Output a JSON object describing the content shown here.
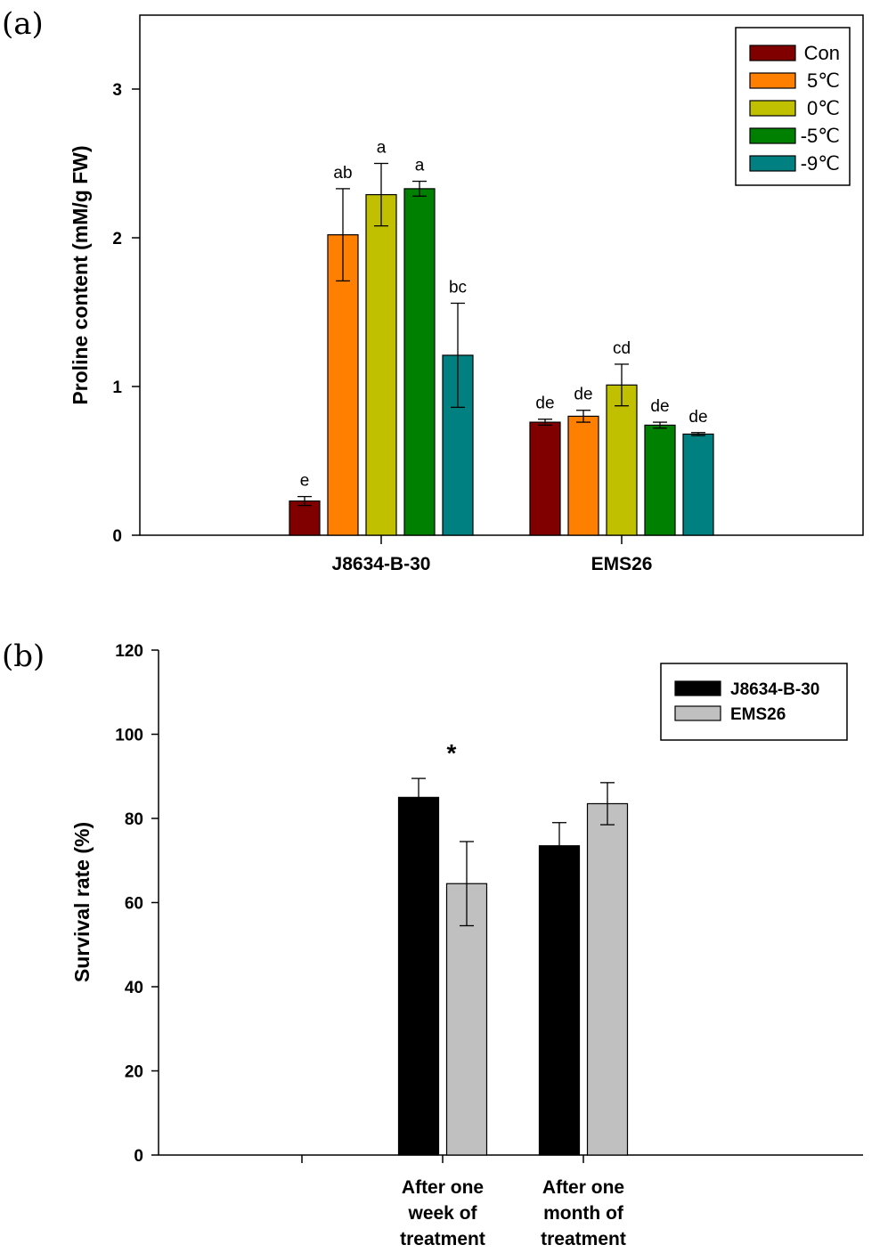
{
  "chart_data": [
    {
      "panel_label": "(a)",
      "type": "bar",
      "ylabel": "Proline content (mM/g FW)",
      "xlabel": "",
      "ylim": [
        0,
        3.5
      ],
      "yticks": [
        0,
        1,
        2,
        3
      ],
      "categories": [
        "J8634-B-30",
        "EMS26"
      ],
      "legend_position": "top-right",
      "series": [
        {
          "name": "Con",
          "color": "#800000",
          "values": [
            0.23,
            0.76
          ],
          "errors": [
            0.03,
            0.02
          ],
          "sig_labels": [
            "e",
            "de"
          ]
        },
        {
          "name": "5℃",
          "color": "#FF8000",
          "values": [
            2.02,
            0.8
          ],
          "errors": [
            0.31,
            0.04
          ],
          "sig_labels": [
            "ab",
            "de"
          ]
        },
        {
          "name": "0℃",
          "color": "#C0C000",
          "values": [
            2.29,
            1.01
          ],
          "errors": [
            0.21,
            0.14
          ],
          "sig_labels": [
            "a",
            "cd"
          ]
        },
        {
          "name": "-5℃",
          "color": "#008000",
          "values": [
            2.33,
            0.74
          ],
          "errors": [
            0.05,
            0.02
          ],
          "sig_labels": [
            "a",
            "de"
          ]
        },
        {
          "name": "-9℃",
          "color": "#008080",
          "values": [
            1.21,
            0.68
          ],
          "errors": [
            0.35,
            0.01
          ],
          "sig_labels": [
            "bc",
            "de"
          ]
        }
      ]
    },
    {
      "panel_label": "(b)",
      "type": "bar",
      "ylabel": "Survival rate (%)",
      "xlabel": "",
      "ylim": [
        0,
        120
      ],
      "yticks": [
        0,
        20,
        40,
        60,
        80,
        100,
        120
      ],
      "categories": [
        "After one week of treatment",
        "After one month of treatment"
      ],
      "category_lines": [
        [
          "After one",
          "week of",
          "treatment"
        ],
        [
          "After one",
          "month of",
          "treatment"
        ]
      ],
      "legend_position": "top-right",
      "annotations": [
        {
          "text": "*",
          "category": 0
        }
      ],
      "series": [
        {
          "name": "J8634-B-30",
          "color": "#000000",
          "values": [
            85,
            73.5
          ],
          "errors": [
            4.5,
            5.5
          ]
        },
        {
          "name": "EMS26",
          "color": "#C0C0C0",
          "values": [
            64.5,
            83.5
          ],
          "errors": [
            10,
            5
          ]
        }
      ]
    }
  ]
}
